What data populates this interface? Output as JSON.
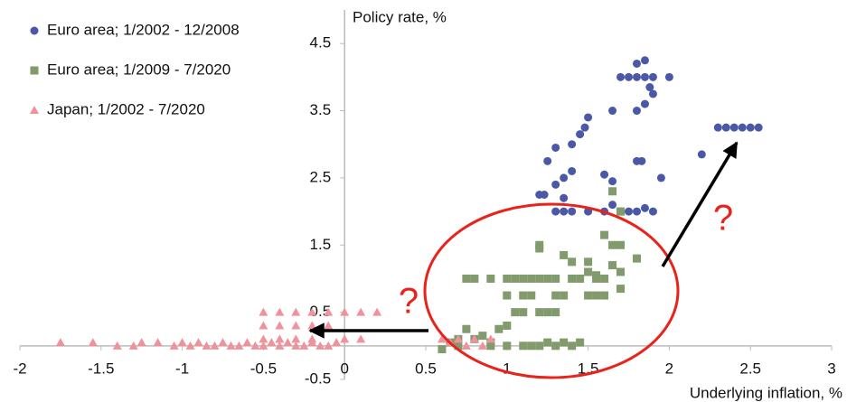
{
  "chart_data": {
    "type": "scatter",
    "y_axis_label": "Policy rate, %",
    "x_axis_label": "Underlying inflation, %",
    "xlim": [
      -2,
      3
    ],
    "ylim": [
      -0.5,
      5
    ],
    "xticks": [
      -2,
      -1.5,
      -1,
      -0.5,
      0,
      0.5,
      1,
      1.5,
      2,
      2.5,
      3
    ],
    "yticks": [
      -0.5,
      0.5,
      1.5,
      2.5,
      3.5,
      4.5
    ],
    "legend": "top-left",
    "annotations": [
      "?",
      "?"
    ],
    "series": [
      {
        "name": "Euro area; 1/2002 - 12/2008",
        "color": "#4a58a6",
        "marker": "circle",
        "x": [
          1.8,
          1.85,
          1.7,
          1.75,
          1.8,
          1.85,
          1.9,
          2.0,
          1.88,
          1.9,
          1.85,
          1.8,
          1.65,
          1.5,
          1.48,
          1.45,
          1.4,
          1.3,
          1.25,
          1.4,
          1.6,
          1.8,
          1.83,
          1.95,
          1.65,
          1.35,
          1.3,
          1.35,
          1.2,
          1.23,
          1.65,
          1.75,
          1.8,
          1.85,
          1.9,
          1.3,
          1.35,
          1.4,
          1.5,
          1.6,
          1.7,
          2.2,
          2.3,
          2.35,
          2.4,
          2.45,
          2.5,
          2.55
        ],
        "values": [
          4.2,
          4.25,
          4.0,
          4.0,
          4.0,
          4.0,
          4.0,
          4.0,
          3.85,
          3.75,
          3.6,
          3.5,
          3.5,
          3.4,
          3.25,
          3.15,
          3.0,
          2.95,
          2.75,
          2.6,
          2.55,
          2.75,
          2.75,
          2.5,
          2.45,
          2.5,
          2.4,
          2.2,
          2.25,
          2.25,
          2.1,
          2.0,
          2.0,
          2.05,
          2.0,
          2.0,
          2.0,
          2.0,
          2.0,
          2.0,
          2.0,
          2.85,
          3.25,
          3.25,
          3.25,
          3.25,
          3.25,
          3.25
        ]
      },
      {
        "name": "Euro area; 1/2009 - 7/2020",
        "color": "#819b6c",
        "marker": "square",
        "x": [
          1.2,
          1.2,
          1.35,
          1.4,
          1.5,
          1.6,
          1.65,
          1.7,
          1.5,
          1.55,
          1.6,
          1.65,
          1.7,
          1.8,
          1.7,
          0.75,
          0.8,
          0.9,
          1.0,
          1.05,
          1.1,
          1.15,
          1.2,
          1.25,
          1.3,
          1.4,
          1.45,
          1.55,
          1.3,
          1.35,
          1.5,
          1.55,
          1.6,
          1.0,
          1.1,
          1.15,
          1.05,
          1.1,
          1.2,
          1.25,
          1.3,
          0.95,
          1.0,
          0.75,
          0.85,
          0.7,
          0.8,
          0.65,
          0.9,
          0.9,
          1.0,
          1.1,
          1.2,
          1.3,
          1.4,
          1.45,
          1.35,
          0.6,
          0.7,
          1.65,
          1.7,
          1.15,
          1.25
        ],
        "values": [
          1.5,
          1.45,
          1.35,
          1.25,
          1.25,
          1.65,
          1.5,
          1.5,
          1.1,
          1.05,
          1.0,
          1.2,
          1.1,
          1.3,
          0.85,
          1.0,
          1.0,
          1.0,
          1.0,
          1.0,
          1.0,
          1.0,
          1.0,
          1.0,
          1.0,
          1.0,
          1.0,
          1.0,
          0.75,
          0.75,
          0.75,
          0.75,
          0.75,
          0.75,
          0.75,
          0.75,
          0.5,
          0.5,
          0.5,
          0.5,
          0.5,
          0.25,
          0.3,
          0.25,
          0.15,
          0.1,
          0.1,
          0.05,
          0.05,
          0,
          0,
          0,
          0,
          0,
          0,
          0.05,
          0.05,
          -0.05,
          0,
          2.3,
          2.0,
          0,
          0.05
        ]
      },
      {
        "name": "Japan; 1/2002 - 7/2020",
        "color": "#f0929b",
        "marker": "triangle",
        "x": [
          -1.75,
          -1.55,
          -1.4,
          -1.3,
          -1.25,
          -1.15,
          -1.05,
          -1.0,
          -0.95,
          -0.9,
          -0.85,
          -0.8,
          -0.75,
          -0.7,
          -0.65,
          -0.6,
          -0.55,
          -0.5,
          -0.45,
          -0.4,
          -0.35,
          -0.3,
          -0.25,
          -0.2,
          -0.15,
          -0.1,
          -0.05,
          -0.5,
          -0.4,
          -0.3,
          -0.2,
          -0.5,
          -0.4,
          -0.3,
          -0.2,
          -0.5,
          -0.4,
          -0.3,
          -0.2,
          -0.1,
          0.0,
          0.1,
          0.2,
          0.6,
          0.7,
          0.8,
          0.9,
          0.75,
          0.85,
          0.1,
          0.0,
          -0.1,
          0.65
        ],
        "values": [
          0.05,
          0.05,
          0,
          0,
          0.05,
          0.05,
          0,
          0.05,
          0,
          0.05,
          0,
          0,
          0.05,
          0,
          0,
          0.05,
          0,
          0,
          0.05,
          0,
          0.05,
          0,
          0,
          0.05,
          0,
          0,
          0.05,
          0.1,
          0.1,
          0.1,
          0.1,
          0.3,
          0.3,
          0.3,
          0.3,
          0.5,
          0.5,
          0.5,
          0.5,
          0.5,
          0.5,
          0.5,
          0.5,
          0.1,
          0.1,
          0.1,
          0.1,
          0,
          0,
          0.1,
          0.1,
          0.3,
          0.05
        ]
      }
    ]
  }
}
